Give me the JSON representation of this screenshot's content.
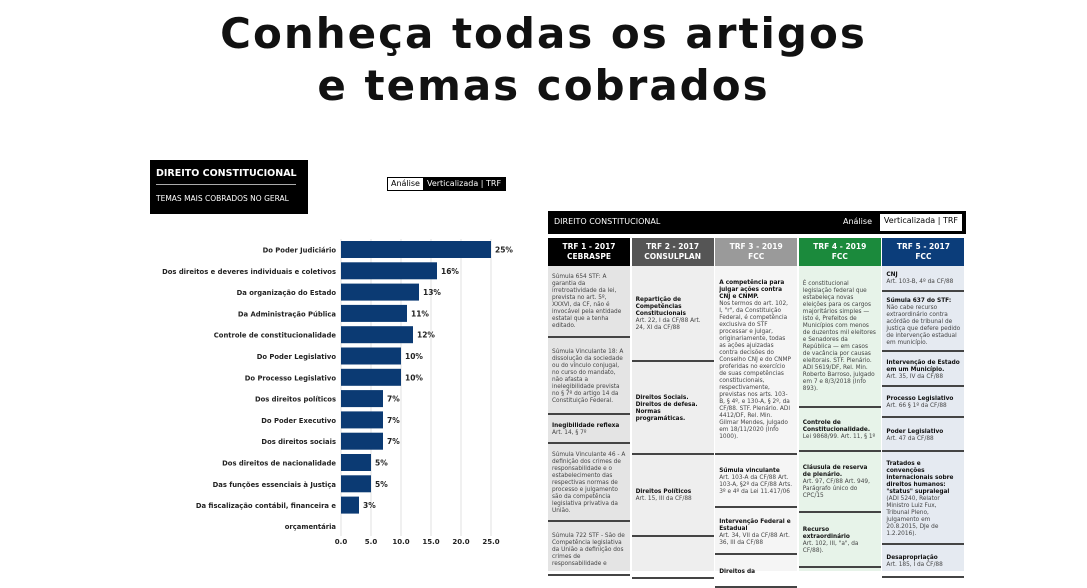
{
  "headline": {
    "line1": "Conheça todas os artigos",
    "line2": "e temas cobrados"
  },
  "chart_card": {
    "title": "DIREITO CONSTITUCIONAL",
    "subtitle": "TEMAS MAIS COBRADOS NO GERAL",
    "badge_a": "Análise",
    "badge_b": "Verticalizada | TRF"
  },
  "chart_data": {
    "type": "bar",
    "orientation": "horizontal",
    "categories": [
      "Do Poder Judiciário",
      "Dos direitos e deveres individuais e coletivos",
      "Da organização do Estado",
      "Da Administração Pública",
      "Controle de constitucionalidade",
      "Do Poder Legislativo",
      "Do Processo Legislativo",
      "Dos direitos políticos",
      "Do Poder Executivo",
      "Dos direitos sociais",
      "Dos direitos de nacionalidade",
      "Das funções essenciais à Justiça",
      "Da fiscalização contábil, financeira e orçamentária"
    ],
    "values": [
      25,
      16,
      13,
      11,
      12,
      10,
      10,
      7,
      7,
      7,
      5,
      5,
      3
    ],
    "data_labels": [
      "25%",
      "16%",
      "13%",
      "11%",
      "12%",
      "10%",
      "10%",
      "7%",
      "7%",
      "7%",
      "5%",
      "5%",
      "3%"
    ],
    "xticks": [
      "0.0",
      "5.0",
      "10.0",
      "15.0",
      "20.0",
      "25.0"
    ],
    "xlim": [
      0,
      25
    ],
    "grid": true,
    "bar_color": "#0b3a73"
  },
  "table": {
    "title": "DIREITO CONSTITUCIONAL",
    "badge_a": "Análise",
    "badge_b": "Verticalizada | TRF",
    "columns": [
      {
        "h1": "TRF 1 - 2017",
        "h2": "CEBRASPE",
        "color": "#000000",
        "bg": "#e4e4e4",
        "cells": [
          {
            "t": "",
            "b": "Súmula 654 STF: A garantia da irretroatividade da lei, prevista no art. 5º, XXXVI, da CF, não é invocável pela entidade estatal que a tenha editado."
          },
          {
            "t": "",
            "b": "Súmula Vinculante 18: A dissolução da sociedade ou do vínculo conjugal, no curso do mandato, não afasta a inelegibilidade prevista no § 7º do artigo 14 da Constituição Federal."
          },
          {
            "t": "Inegibilidade reflexa",
            "b": "Art. 14, § 7º"
          },
          {
            "t": "",
            "b": "Súmula Vinculante 46 - A definição dos crimes de responsabilidade e o estabelecimento das respectivas normas de processo e julgamento são da competência legislativa privativa da União."
          },
          {
            "t": "",
            "b": "Súmula 722 STF - São de Competência legislativa da União a definição dos crimes de responsabilidade e"
          }
        ]
      },
      {
        "h1": "TRF 2 - 2017",
        "h2": "CONSULPLAN",
        "color": "#555555",
        "bg": "#eeeeee",
        "cells": [
          {
            "t": "Repartição de Competências Constitucionais",
            "b": "Art. 22, I da CF/88\nArt. 24, XI da CF/88"
          },
          {
            "t": "Direitos Sociais. Direitos de defesa. Normas programáticas.",
            "b": ""
          },
          {
            "t": "Direitos Políticos",
            "b": "Art. 15, III da CF/88"
          },
          {
            "t": "",
            "b": ""
          }
        ]
      },
      {
        "h1": "TRF 3 - 2019",
        "h2": "FCC",
        "color": "#9a9a9a",
        "bg": "#f5f5f5",
        "cells": [
          {
            "t": "A competência para julgar ações contra CNJ e CNMP.",
            "b": "Nos termos do art. 102, I, \"r\", da Constituição Federal, é competência exclusiva do STF processar e julgar, originariamente, todas as ações ajuizadas contra decisões do Conselho CNJ e do CNMP proferidas no exercício de suas competências constitucionais, respectivamente, previstas nos arts. 103-B, § 4º, e 130-A, § 2º, da CF/88. STF. Plenário. ADI 4412/DF, Rel. Min. Gilmar Mendes, julgado em 18/11/2020 (Info 1000)."
          },
          {
            "t": "Súmula vinculante",
            "b": "Art. 103-A da CF/88 Art. 103-A, §2º da CF/88 Arts. 3º e 4º da Lei 11.417/06"
          },
          {
            "t": "Intervenção Federal e Estadual",
            "b": "Art. 34, VII da CF/88 Art. 36, III da CF/88"
          },
          {
            "t": "Direitos da",
            "b": ""
          }
        ]
      },
      {
        "h1": "TRF 4 - 2019",
        "h2": "FCC",
        "color": "#1b8a3c",
        "bg": "#e7f3e9",
        "cells": [
          {
            "t": "",
            "b": "É constitucional legislação federal que estabeleça novas eleições para os cargos majoritários simples — isto é, Prefeitos de Municípios com menos de duzentos mil eleitores e Senadores da República — em casos de vacância por causas eleitorais. STF. Plenário. ADI 5619/DF, Rel. Min. Roberto Barroso, julgado em 7 e 8/3/2018 (Info 893)."
          },
          {
            "t": "Controle de Constitucionalidade.",
            "b": "Lei 9868/99. Art. 11, § 1º"
          },
          {
            "t": "Cláusula de reserva de plenário.",
            "b": "Art. 97, CF/88 Art. 949, Parágrafo único do CPC/15"
          },
          {
            "t": "Recurso extraordinário",
            "b": "Art. 102, III, \"a\", da CF/88)."
          }
        ]
      },
      {
        "h1": "TRF 5 - 2017",
        "h2": "FCC",
        "color": "#0b3d7a",
        "bg": "#e5eaf1",
        "cells": [
          {
            "t": "CNJ",
            "b": "Art. 103-B, 4º da CF/88"
          },
          {
            "t": "Súmula 637 do STF:",
            "b": "Não cabe recurso extraordinário contra acórdão de tribunal de justiça que defere pedido de intervenção estadual em município."
          },
          {
            "t": "Intervenção de Estado em um Município.",
            "b": "Art. 35, IV da CF/88"
          },
          {
            "t": "Processo Legislativo",
            "b": "Art. 66 § 1º da CF/88"
          },
          {
            "t": "Poder Legislativo",
            "b": "Art. 47 da CF/88"
          },
          {
            "t": "Tratados e convenções internacionais sobre direitos humanos: \"status\" supralegal",
            "b": "(ADI 5240, Relator Ministro Luiz Fux, Tribunal Pleno, julgamento em 20.8.2015, DJe de 1.2.2016)."
          },
          {
            "t": "Desapropriação",
            "b": "Art. 185, I da CF/88"
          }
        ]
      }
    ]
  }
}
